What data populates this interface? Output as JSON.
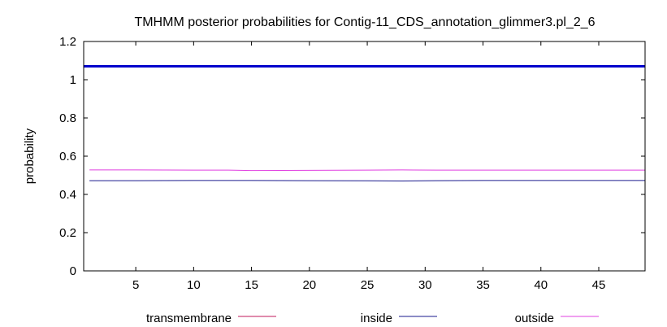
{
  "chart_data": {
    "type": "line",
    "title": "TMHMM posterior probabilities for Contig-11_CDS_annotation_glimmer3.pl_2_6",
    "xlabel": "",
    "ylabel": "probability",
    "xlim": [
      0.5,
      49
    ],
    "ylim": [
      0,
      1.2
    ],
    "xticks": [
      5,
      10,
      15,
      20,
      25,
      30,
      35,
      40,
      45
    ],
    "yticks": [
      0,
      0.2,
      0.4,
      0.6,
      0.8,
      1,
      1.2
    ],
    "ytick_labels": [
      "0",
      "0.2",
      "0.4",
      "0.6",
      "0.8",
      "1",
      "1.2"
    ],
    "grid": false,
    "legend_position": "bottom",
    "series": [
      {
        "name": "transmembrane",
        "color": "#c2185b",
        "x": [
          1,
          49
        ],
        "y": [
          0,
          0
        ]
      },
      {
        "name": "inside",
        "color": "#1a1a8c",
        "x": [
          1,
          5,
          10,
          15,
          20,
          25,
          28,
          31,
          35,
          40,
          45,
          49
        ],
        "y": [
          0.472,
          0.472,
          0.473,
          0.473,
          0.472,
          0.471,
          0.47,
          0.472,
          0.473,
          0.473,
          0.473,
          0.473
        ]
      },
      {
        "name": "outside",
        "color": "#e040e0",
        "x": [
          1,
          5,
          10,
          13,
          15,
          20,
          25,
          28,
          31,
          35,
          40,
          45,
          49
        ],
        "y": [
          0.528,
          0.528,
          0.527,
          0.527,
          0.525,
          0.526,
          0.527,
          0.528,
          0.527,
          0.527,
          0.527,
          0.527,
          0.527
        ]
      },
      {
        "name": "",
        "color": "#0000cc",
        "x": [
          0.5,
          49
        ],
        "y": [
          1.07,
          1.07
        ]
      }
    ]
  }
}
